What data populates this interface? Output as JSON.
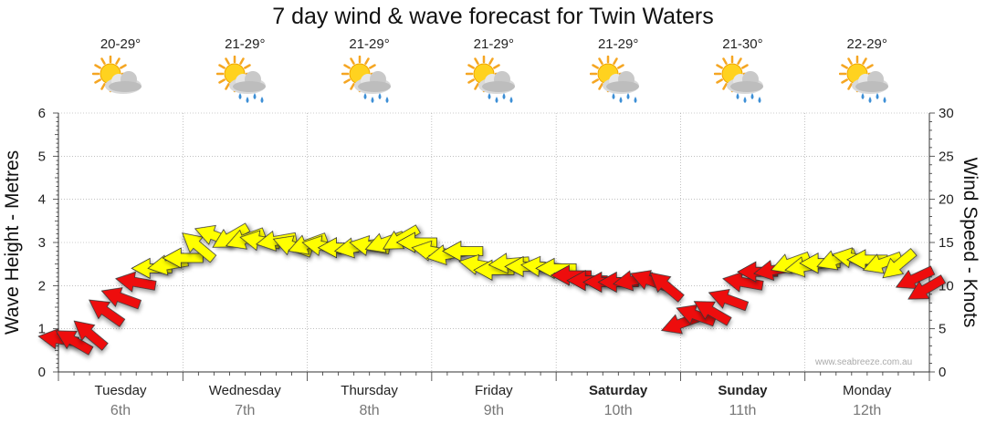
{
  "title": "7 day wind & wave forecast for Twin Waters",
  "watermark": "www.seabreeze.com.au",
  "days": [
    {
      "temp": "20-29°",
      "day": "Tuesday",
      "date": "6th",
      "bold": false,
      "icon": "sun-cloud-icon"
    },
    {
      "temp": "21-29°",
      "day": "Wednesday",
      "date": "7th",
      "bold": false,
      "icon": "sun-cloud-rain-icon"
    },
    {
      "temp": "21-29°",
      "day": "Thursday",
      "date": "8th",
      "bold": false,
      "icon": "sun-cloud-rain-icon"
    },
    {
      "temp": "21-29°",
      "day": "Friday",
      "date": "9th",
      "bold": false,
      "icon": "sun-cloud-rain-icon"
    },
    {
      "temp": "21-29°",
      "day": "Saturday",
      "date": "10th",
      "bold": true,
      "icon": "sun-cloud-rain-icon"
    },
    {
      "temp": "21-30°",
      "day": "Sunday",
      "date": "11th",
      "bold": true,
      "icon": "sun-cloud-rain-icon"
    },
    {
      "temp": "22-29°",
      "day": "Monday",
      "date": "12th",
      "bold": false,
      "icon": "sun-cloud-rain-icon"
    }
  ],
  "chart_data": {
    "type": "line",
    "title": "7 day wind & wave forecast for Twin Waters",
    "ylabel": "Wave Height - Metres",
    "y2label": "Wind Speed - Knots",
    "ylim": [
      0,
      6
    ],
    "y2lim": [
      0,
      30
    ],
    "yticks": [
      "0",
      "1",
      "2",
      "3",
      "4",
      "5",
      "6"
    ],
    "y2ticks": [
      "0",
      "5",
      "10",
      "15",
      "20",
      "25",
      "30"
    ],
    "categories": [
      "Tuesday",
      "Wednesday",
      "Thursday",
      "Friday",
      "Saturday",
      "Sunday",
      "Monday"
    ],
    "grid": true,
    "colors": {
      "strong": "#ee1111",
      "moderate": "#ffff00",
      "outline": "#333333"
    },
    "series": [
      {
        "name": "Wind Speed",
        "points": [
          {
            "t": 0.0,
            "y": 3.8,
            "dir": 8,
            "band": "strong"
          },
          {
            "t": 0.12,
            "y": 3.6,
            "dir": 30,
            "band": "strong"
          },
          {
            "t": 0.25,
            "y": 4.4,
            "dir": 40,
            "band": "strong"
          },
          {
            "t": 0.38,
            "y": 7.0,
            "dir": 35,
            "band": "strong"
          },
          {
            "t": 0.5,
            "y": 8.6,
            "dir": 20,
            "band": "strong"
          },
          {
            "t": 0.62,
            "y": 10.4,
            "dir": 10,
            "band": "strong"
          },
          {
            "t": 0.75,
            "y": 12.0,
            "dir": 0,
            "band": "moderate"
          },
          {
            "t": 0.88,
            "y": 12.4,
            "dir": 350,
            "band": "moderate"
          },
          {
            "t": 1.0,
            "y": 13.2,
            "dir": 0,
            "band": "moderate"
          },
          {
            "t": 1.12,
            "y": 14.6,
            "dir": 40,
            "band": "moderate"
          },
          {
            "t": 1.25,
            "y": 15.8,
            "dir": 20,
            "band": "moderate"
          },
          {
            "t": 1.38,
            "y": 15.6,
            "dir": 330,
            "band": "moderate"
          },
          {
            "t": 1.5,
            "y": 15.4,
            "dir": 340,
            "band": "moderate"
          },
          {
            "t": 1.62,
            "y": 15.2,
            "dir": 10,
            "band": "moderate"
          },
          {
            "t": 1.75,
            "y": 15.2,
            "dir": 350,
            "band": "moderate"
          },
          {
            "t": 1.88,
            "y": 14.6,
            "dir": 20,
            "band": "moderate"
          },
          {
            "t": 2.0,
            "y": 14.8,
            "dir": 340,
            "band": "moderate"
          },
          {
            "t": 2.12,
            "y": 14.6,
            "dir": 10,
            "band": "moderate"
          },
          {
            "t": 2.25,
            "y": 14.4,
            "dir": 0,
            "band": "moderate"
          },
          {
            "t": 2.38,
            "y": 14.4,
            "dir": 350,
            "band": "moderate"
          },
          {
            "t": 2.5,
            "y": 14.6,
            "dir": 10,
            "band": "moderate"
          },
          {
            "t": 2.62,
            "y": 15.0,
            "dir": 340,
            "band": "moderate"
          },
          {
            "t": 2.75,
            "y": 15.4,
            "dir": 330,
            "band": "moderate"
          },
          {
            "t": 2.88,
            "y": 15.0,
            "dir": 0,
            "band": "moderate"
          },
          {
            "t": 3.0,
            "y": 14.0,
            "dir": 10,
            "band": "moderate"
          },
          {
            "t": 3.12,
            "y": 13.6,
            "dir": 350,
            "band": "moderate"
          },
          {
            "t": 3.25,
            "y": 14.0,
            "dir": 0,
            "band": "moderate"
          },
          {
            "t": 3.38,
            "y": 12.4,
            "dir": 10,
            "band": "moderate"
          },
          {
            "t": 3.5,
            "y": 11.8,
            "dir": 0,
            "band": "moderate"
          },
          {
            "t": 3.62,
            "y": 12.6,
            "dir": 355,
            "band": "moderate"
          },
          {
            "t": 3.75,
            "y": 12.2,
            "dir": 0,
            "band": "moderate"
          },
          {
            "t": 3.88,
            "y": 12.2,
            "dir": 5,
            "band": "moderate"
          },
          {
            "t": 4.0,
            "y": 12.0,
            "dir": 0,
            "band": "moderate"
          },
          {
            "t": 4.12,
            "y": 11.2,
            "dir": 0,
            "band": "strong"
          },
          {
            "t": 4.25,
            "y": 10.6,
            "dir": 0,
            "band": "strong"
          },
          {
            "t": 4.38,
            "y": 10.4,
            "dir": 0,
            "band": "strong"
          },
          {
            "t": 4.5,
            "y": 10.4,
            "dir": 0,
            "band": "strong"
          },
          {
            "t": 4.62,
            "y": 10.6,
            "dir": 350,
            "band": "strong"
          },
          {
            "t": 4.75,
            "y": 10.6,
            "dir": 20,
            "band": "strong"
          },
          {
            "t": 4.88,
            "y": 10.0,
            "dir": 40,
            "band": "strong"
          },
          {
            "t": 5.0,
            "y": 5.6,
            "dir": 340,
            "band": "strong"
          },
          {
            "t": 5.12,
            "y": 6.6,
            "dir": 20,
            "band": "strong"
          },
          {
            "t": 5.25,
            "y": 7.0,
            "dir": 30,
            "band": "strong"
          },
          {
            "t": 5.38,
            "y": 8.4,
            "dir": 20,
            "band": "strong"
          },
          {
            "t": 5.5,
            "y": 10.4,
            "dir": 10,
            "band": "strong"
          },
          {
            "t": 5.62,
            "y": 11.6,
            "dir": 0,
            "band": "strong"
          },
          {
            "t": 5.75,
            "y": 11.8,
            "dir": 350,
            "band": "strong"
          },
          {
            "t": 5.88,
            "y": 12.6,
            "dir": 340,
            "band": "moderate"
          },
          {
            "t": 6.0,
            "y": 12.2,
            "dir": 350,
            "band": "moderate"
          },
          {
            "t": 6.12,
            "y": 12.6,
            "dir": 0,
            "band": "moderate"
          },
          {
            "t": 6.25,
            "y": 13.0,
            "dir": 340,
            "band": "moderate"
          },
          {
            "t": 6.38,
            "y": 13.2,
            "dir": 10,
            "band": "moderate"
          },
          {
            "t": 6.5,
            "y": 13.0,
            "dir": 0,
            "band": "moderate"
          },
          {
            "t": 6.62,
            "y": 12.6,
            "dir": 340,
            "band": "moderate"
          },
          {
            "t": 6.75,
            "y": 12.4,
            "dir": 320,
            "band": "moderate"
          },
          {
            "t": 6.88,
            "y": 10.8,
            "dir": 335,
            "band": "strong"
          },
          {
            "t": 7.0,
            "y": 9.6,
            "dir": 330,
            "band": "strong"
          }
        ]
      }
    ]
  }
}
